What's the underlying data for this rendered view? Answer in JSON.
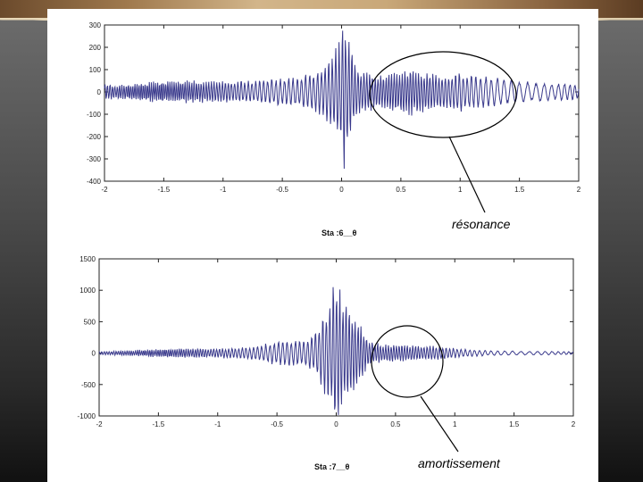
{
  "chart_data": [
    {
      "type": "line",
      "title": "",
      "caption": "Sta :6__θ",
      "annotation": "résonance",
      "xlim": [
        -2,
        2
      ],
      "ylim": [
        -400,
        300
      ],
      "xticks": [
        "-2",
        "-1.5",
        "-1",
        "-0.5",
        "0",
        "0.5",
        "1",
        "1.5",
        "2"
      ],
      "yticks": [
        "300",
        "200",
        "100",
        "0",
        "-100",
        "-200",
        "-300",
        "-400"
      ],
      "series": [
        {
          "color": "#3a3a8c",
          "x": [
            -2.0,
            -1.9,
            -1.8,
            -1.7,
            -1.6,
            -1.5,
            -1.4,
            -1.3,
            -1.2,
            -1.1,
            -1.0,
            -0.9,
            -0.8,
            -0.7,
            -0.6,
            -0.5,
            -0.4,
            -0.3,
            -0.2,
            -0.15,
            -0.1,
            -0.05,
            0.0,
            0.02,
            0.04,
            0.06,
            0.08,
            0.1,
            0.15,
            0.2,
            0.3,
            0.4,
            0.5,
            0.6,
            0.7,
            0.8,
            0.9,
            1.0,
            1.1,
            1.2,
            1.3,
            1.4,
            1.5,
            1.6,
            1.7,
            1.8,
            1.9,
            2.0
          ],
          "envelope": [
            40,
            35,
            40,
            45,
            50,
            55,
            60,
            55,
            50,
            50,
            50,
            55,
            50,
            55,
            60,
            65,
            70,
            80,
            100,
            120,
            150,
            200,
            260,
            390,
            250,
            240,
            200,
            150,
            110,
            90,
            80,
            90,
            100,
            110,
            95,
            80,
            85,
            90,
            80,
            75,
            70,
            60,
            50,
            45,
            45,
            40,
            40,
            35
          ]
        }
      ]
    },
    {
      "type": "line",
      "title": "",
      "caption": "Sta :7__θ",
      "annotation": "amortissement",
      "xlim": [
        -2,
        2
      ],
      "ylim": [
        -1000,
        1500
      ],
      "xticks": [
        "-2",
        "-1.5",
        "-1",
        "-0.5",
        "0",
        "0.5",
        "1",
        "1.5",
        "2"
      ],
      "yticks": [
        "1500",
        "1000",
        "500",
        "0",
        "-500",
        "-1000"
      ],
      "series": [
        {
          "color": "#3a3a8c",
          "x": [
            -2.0,
            -1.9,
            -1.8,
            -1.7,
            -1.6,
            -1.5,
            -1.4,
            -1.3,
            -1.2,
            -1.1,
            -1.0,
            -0.9,
            -0.8,
            -0.7,
            -0.6,
            -0.5,
            -0.4,
            -0.3,
            -0.2,
            -0.15,
            -0.1,
            -0.05,
            0.0,
            0.02,
            0.04,
            0.06,
            0.1,
            0.15,
            0.2,
            0.25,
            0.3,
            0.4,
            0.5,
            0.6,
            0.7,
            0.8,
            0.9,
            1.0,
            1.1,
            1.2,
            1.3,
            1.4,
            1.5,
            1.6,
            1.7,
            1.8,
            1.9,
            2.0
          ],
          "envelope": [
            30,
            30,
            40,
            50,
            60,
            70,
            75,
            80,
            80,
            75,
            80,
            85,
            90,
            110,
            150,
            200,
            220,
            200,
            300,
            450,
            700,
            900,
            1300,
            1280,
            1000,
            900,
            800,
            600,
            500,
            300,
            200,
            150,
            150,
            140,
            130,
            120,
            110,
            80,
            60,
            50,
            40,
            40,
            35,
            30,
            30,
            30,
            25,
            25
          ]
        }
      ]
    }
  ]
}
